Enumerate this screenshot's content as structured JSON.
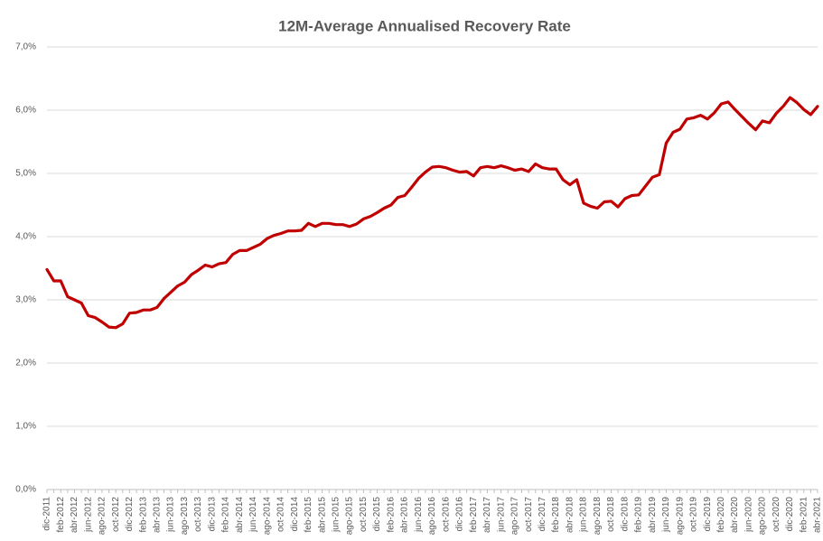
{
  "chart_data": {
    "type": "line",
    "title": "12M-Average Annualised Recovery Rate",
    "categories": [
      "dic-2011",
      null,
      "feb-2012",
      null,
      "abr-2012",
      null,
      "jun-2012",
      null,
      "ago-2012",
      null,
      "oct-2012",
      null,
      "dic-2012",
      null,
      "feb-2013",
      null,
      "abr-2013",
      null,
      "jun-2013",
      null,
      "ago-2013",
      null,
      "oct-2013",
      null,
      "dic-2013",
      null,
      "feb-2014",
      null,
      "abr-2014",
      null,
      "jun-2014",
      null,
      "ago-2014",
      null,
      "oct-2014",
      null,
      "dic-2014",
      null,
      "feb-2015",
      null,
      "abr-2015",
      null,
      "jun-2015",
      null,
      "ago-2015",
      null,
      "oct-2015",
      null,
      "dic-2015",
      null,
      "feb-2016",
      null,
      "abr-2016",
      null,
      "jun-2016",
      null,
      "ago-2016",
      null,
      "oct-2016",
      null,
      "dic-2016",
      null,
      "feb-2017",
      null,
      "abr-2017",
      null,
      "jun-2017",
      null,
      "ago-2017",
      null,
      "oct-2017",
      null,
      "dic-2017",
      null,
      "feb-2018",
      null,
      "abr-2018",
      null,
      "jun-2018",
      null,
      "ago-2018",
      null,
      "oct-2018",
      null,
      "dic-2018",
      null,
      "feb-2019",
      null,
      "abr-2019",
      null,
      "jun-2019",
      null,
      "ago-2019",
      null,
      "oct-2019",
      null,
      "dic-2019",
      null,
      "feb-2020",
      null,
      "abr-2020",
      null,
      "jun-2020",
      null,
      "ago-2020",
      null,
      "oct-2020",
      null,
      "dic-2020",
      null,
      "feb-2021",
      null,
      "abr-2021"
    ],
    "series": [
      {
        "name": "12M-Average Annualised Recovery Rate",
        "color": "#c00000",
        "values": [
          3.48,
          3.3,
          3.3,
          3.05,
          3.0,
          2.95,
          2.75,
          2.72,
          2.65,
          2.57,
          2.56,
          2.62,
          2.79,
          2.8,
          2.84,
          2.84,
          2.88,
          3.02,
          3.12,
          3.22,
          3.28,
          3.4,
          3.47,
          3.55,
          3.52,
          3.57,
          3.59,
          3.72,
          3.78,
          3.78,
          3.83,
          3.88,
          3.97,
          4.02,
          4.05,
          4.09,
          4.09,
          4.1,
          4.21,
          4.16,
          4.21,
          4.21,
          4.19,
          4.19,
          4.16,
          4.2,
          4.28,
          4.32,
          4.38,
          4.45,
          4.5,
          4.62,
          4.65,
          4.78,
          4.92,
          5.02,
          5.1,
          5.11,
          5.09,
          5.05,
          5.02,
          5.03,
          4.96,
          5.09,
          5.11,
          5.09,
          5.12,
          5.09,
          5.05,
          5.07,
          5.03,
          5.15,
          5.09,
          5.07,
          5.07,
          4.9,
          4.82,
          4.9,
          4.53,
          4.48,
          4.45,
          4.55,
          4.56,
          4.47,
          4.6,
          4.65,
          4.66,
          4.8,
          4.94,
          4.98,
          5.48,
          5.65,
          5.7,
          5.86,
          5.88,
          5.92,
          5.86,
          5.96,
          6.1,
          6.13,
          6.01,
          5.9,
          5.79,
          5.69,
          5.83,
          5.8,
          5.95,
          6.06,
          6.2,
          6.12,
          6.01,
          5.93,
          6.06
        ]
      }
    ],
    "ylim": [
      0,
      7
    ],
    "yticks": [
      {
        "value": 0,
        "label": "0,0%"
      },
      {
        "value": 1,
        "label": "1,0%"
      },
      {
        "value": 2,
        "label": "2,0%"
      },
      {
        "value": 3,
        "label": "3,0%"
      },
      {
        "value": 4,
        "label": "4,0%"
      },
      {
        "value": 5,
        "label": "5,0%"
      },
      {
        "value": 6,
        "label": "6,0%"
      },
      {
        "value": 7,
        "label": "7,0%"
      }
    ],
    "grid": true
  }
}
